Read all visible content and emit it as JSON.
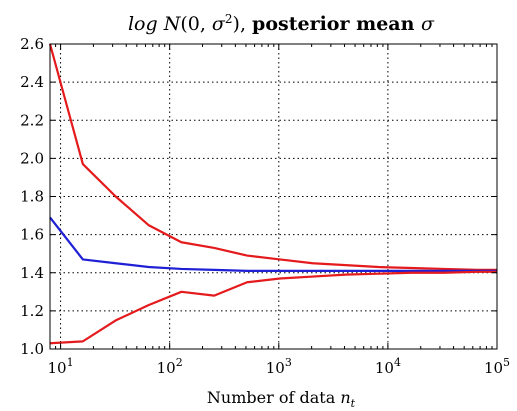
{
  "chart_data": {
    "type": "line",
    "title": "log N(0, σ²), posterior mean σ",
    "xlabel": "Number of data n_t",
    "ylabel": "",
    "x_scale": "log",
    "xlim": [
      8,
      100000
    ],
    "ylim": [
      1.0,
      2.6
    ],
    "grid": true,
    "y_ticks": [
      "1.0",
      "1.2",
      "1.4",
      "1.6",
      "1.8",
      "2.0",
      "2.2",
      "2.4",
      "2.6"
    ],
    "x_ticks": [
      {
        "value": 10,
        "base": "10",
        "exp": "1"
      },
      {
        "value": 100,
        "base": "10",
        "exp": "2"
      },
      {
        "value": 1000,
        "base": "10",
        "exp": "3"
      },
      {
        "value": 10000,
        "base": "10",
        "exp": "4"
      },
      {
        "value": 100000,
        "base": "10",
        "exp": "5"
      }
    ],
    "x": [
      8,
      16,
      32,
      64,
      128,
      256,
      512,
      1024,
      2048,
      4096,
      8192,
      16384,
      32768,
      65536,
      100000
    ],
    "series": [
      {
        "color": "#e41a1c",
        "values": [
          2.6,
          1.97,
          1.8,
          1.65,
          1.56,
          1.53,
          1.49,
          1.47,
          1.45,
          1.44,
          1.43,
          1.425,
          1.42,
          1.415,
          1.415
        ]
      },
      {
        "color": "#1f1fd6",
        "values": [
          1.69,
          1.47,
          1.45,
          1.43,
          1.42,
          1.415,
          1.41,
          1.41,
          1.41,
          1.41,
          1.41,
          1.41,
          1.41,
          1.41,
          1.41
        ]
      },
      {
        "color": "#e41a1c",
        "values": [
          1.03,
          1.04,
          1.15,
          1.23,
          1.3,
          1.28,
          1.35,
          1.37,
          1.38,
          1.39,
          1.395,
          1.4,
          1.4,
          1.405,
          1.405
        ]
      }
    ]
  }
}
